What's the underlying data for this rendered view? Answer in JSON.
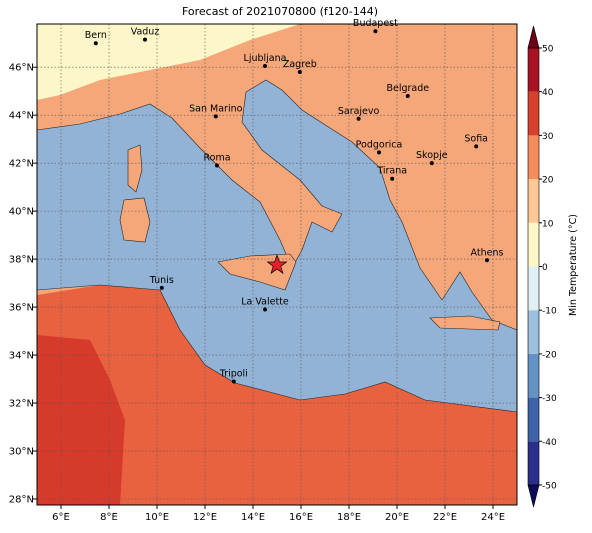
{
  "title": "Forecast of 2021070800 (f120-144)",
  "map": {
    "lonlim": [
      5,
      25
    ],
    "latlim": [
      27.75,
      47.8
    ],
    "lonticks": [
      {
        "value": 6,
        "label": "6°E"
      },
      {
        "value": 8,
        "label": "8°E"
      },
      {
        "value": 10,
        "label": "10°E"
      },
      {
        "value": 12,
        "label": "12°E"
      },
      {
        "value": 14,
        "label": "14°E"
      },
      {
        "value": 16,
        "label": "16°E"
      },
      {
        "value": 18,
        "label": "18°E"
      },
      {
        "value": 20,
        "label": "20°E"
      },
      {
        "value": 22,
        "label": "22°E"
      },
      {
        "value": 24,
        "label": "24°E"
      }
    ],
    "latticks": [
      {
        "value": 28,
        "label": "28°N"
      },
      {
        "value": 30,
        "label": "30°N"
      },
      {
        "value": 32,
        "label": "32°N"
      },
      {
        "value": 34,
        "label": "34°N"
      },
      {
        "value": 36,
        "label": "36°N"
      },
      {
        "value": 38,
        "label": "38°N"
      },
      {
        "value": 40,
        "label": "40°N"
      },
      {
        "value": 42,
        "label": "42°N"
      },
      {
        "value": 44,
        "label": "44°N"
      },
      {
        "value": 46,
        "label": "46°N"
      }
    ],
    "grid": true,
    "forecast_point": {
      "lon": 15.0,
      "lat": 37.75,
      "color": "#e8202a"
    }
  },
  "cities": [
    {
      "name": "Bern",
      "lon": 7.45,
      "lat": 47.0
    },
    {
      "name": "Vaduz",
      "lon": 9.5,
      "lat": 47.15
    },
    {
      "name": "Budapest",
      "lon": 19.1,
      "lat": 47.5
    },
    {
      "name": "Ljubljana",
      "lon": 14.5,
      "lat": 46.05
    },
    {
      "name": "Zagreb",
      "lon": 15.95,
      "lat": 45.8
    },
    {
      "name": "Belgrade",
      "lon": 20.45,
      "lat": 44.8
    },
    {
      "name": "San Marino",
      "lon": 12.45,
      "lat": 43.95
    },
    {
      "name": "Sarajevo",
      "lon": 18.4,
      "lat": 43.85
    },
    {
      "name": "Sofia",
      "lon": 23.3,
      "lat": 42.7
    },
    {
      "name": "Roma",
      "lon": 12.5,
      "lat": 41.9
    },
    {
      "name": "Podgorica",
      "lon": 19.25,
      "lat": 42.45
    },
    {
      "name": "Skopje",
      "lon": 21.45,
      "lat": 42.0
    },
    {
      "name": "Tirana",
      "lon": 19.8,
      "lat": 41.35
    },
    {
      "name": "Athens",
      "lon": 23.75,
      "lat": 37.95
    },
    {
      "name": "Tunis",
      "lon": 10.2,
      "lat": 36.8
    },
    {
      "name": "La Valette",
      "lon": 14.5,
      "lat": 35.9
    },
    {
      "name": "Tripoli",
      "lon": 13.2,
      "lat": 32.9
    }
  ],
  "colorbar": {
    "label": "Min Temperature (°C)",
    "lim": [
      -50,
      50
    ],
    "ticks": [
      -50,
      -40,
      -30,
      -20,
      -10,
      0,
      10,
      20,
      30,
      40,
      50
    ],
    "boundaries": [
      -50,
      -40,
      -30,
      -20,
      -10,
      0,
      10,
      20,
      30,
      40,
      50
    ],
    "colors": [
      "#2b2f8c",
      "#3f63a8",
      "#6592c4",
      "#9cc0de",
      "#dff0f6",
      "#fdf7c8",
      "#fdc894",
      "#f48c5e",
      "#d8402e",
      "#a81225"
    ],
    "extend_colors": [
      "#0c0c5a",
      "#6b0018"
    ]
  }
}
